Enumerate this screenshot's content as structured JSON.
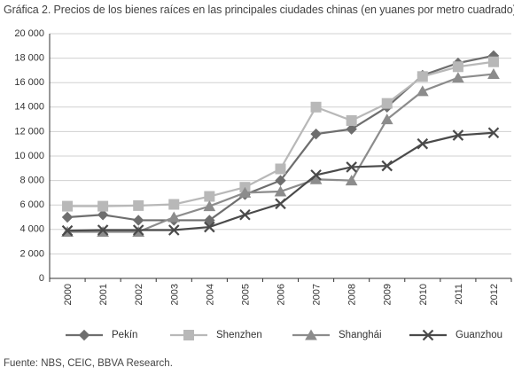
{
  "title": "Gráfica 2. Precios de los bienes raíces en las principales ciudades chinas (en yuanes por metro cuadrado)",
  "source": "Fuente: NBS, CEIC, BBVA Research.",
  "chart_data": {
    "type": "line",
    "title": "Gráfica 2. Precios de los bienes raíces en las principales ciudades chinas (en yuanes por metro cuadrado)",
    "xlabel": "",
    "ylabel": "",
    "categories": [
      "2000",
      "2001",
      "2002",
      "2003",
      "2004",
      "2005",
      "2006",
      "2007",
      "2008",
      "2009",
      "2010",
      "2011",
      "2012"
    ],
    "ylim": [
      0,
      20000
    ],
    "yticks": [
      0,
      2000,
      4000,
      6000,
      8000,
      10000,
      12000,
      14000,
      16000,
      18000,
      20000
    ],
    "ytick_labels": [
      "0",
      "2 000",
      "4 000",
      "6 000",
      "8 000",
      "10 000",
      "12 000",
      "14 000",
      "16 000",
      "18 000",
      "20 000"
    ],
    "grid": true,
    "legend_position": "bottom",
    "series": [
      {
        "name": "Pekín",
        "marker": "diamond",
        "color": "#6e6e6e",
        "values": [
          5000,
          5200,
          4750,
          4750,
          4750,
          6850,
          8000,
          11800,
          12200,
          14000,
          16600,
          17600,
          18200
        ]
      },
      {
        "name": "Shenzhen",
        "marker": "square",
        "color": "#b8b8b8",
        "values": [
          5900,
          5900,
          5950,
          6050,
          6700,
          7450,
          8950,
          14000,
          12900,
          14300,
          16500,
          17300,
          17700
        ]
      },
      {
        "name": "Shanghái",
        "marker": "triangle",
        "color": "#8c8c8c",
        "values": [
          3800,
          3800,
          3800,
          5000,
          5900,
          7000,
          7100,
          8100,
          8000,
          13000,
          15300,
          16400,
          16700
        ]
      },
      {
        "name": "Guanzhou",
        "marker": "x",
        "color": "#4a4a4a",
        "values": [
          3900,
          3950,
          3950,
          3950,
          4200,
          5200,
          6100,
          8450,
          9100,
          9200,
          11000,
          11700,
          11900
        ]
      }
    ]
  }
}
